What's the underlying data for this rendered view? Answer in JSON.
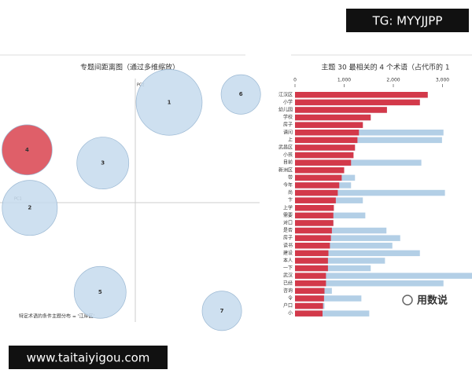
{
  "chart_data": [
    {
      "type": "bubble",
      "title": "专题间距离图（通过多维缩放）",
      "x_label": "PC1",
      "y_label": "PC2",
      "labels": [
        "1",
        "6",
        "4",
        "3",
        "2",
        "5",
        "7"
      ],
      "x": [
        0.25,
        0.78,
        -0.8,
        -0.24,
        -0.78,
        -0.26,
        0.64
      ],
      "y": [
        0.76,
        0.82,
        0.4,
        0.3,
        -0.04,
        -0.68,
        -0.82
      ],
      "sizes": [
        17.6,
        6.3,
        10.2,
        10.9,
        12.3,
        10.9,
        6.3
      ],
      "colors": [
        "#c6dbed",
        "#c6dbed",
        "#d9434f",
        "#c6dbed",
        "#c6dbed",
        "#c6dbed",
        "#c6dbed"
      ],
      "xlim": [
        -1,
        1
      ],
      "ylim": [
        -1,
        1
      ],
      "annotation": "特定术语的条件主题分布 = '江岸区'"
    },
    {
      "type": "hbar",
      "title": "主题 30 最相关的 4 个术语（占代币的 1",
      "categories": [
        "江汉区",
        "小学",
        "幼儿园",
        "学校",
        "房子",
        "请问",
        "上",
        "武昌区",
        "小孩",
        "目前",
        "新洲区",
        "带",
        "今年",
        "尚",
        "卞",
        "上学",
        "需要",
        "对口",
        "是否",
        "房子",
        "读书",
        "建设",
        "本人",
        "一下",
        "武汉",
        "已经",
        "咨询",
        "令",
        "户口",
        "小"
      ],
      "series": [
        {
          "color": "#b3cfe6",
          "values": [
            2700,
            2540,
            1870,
            1540,
            1380,
            3020,
            2990,
            1220,
            1190,
            2570,
            1000,
            1220,
            1140,
            3050,
            1380,
            790,
            1430,
            780,
            1860,
            2140,
            1980,
            2540,
            1830,
            1540,
            3600,
            3020,
            750,
            1350,
            600,
            1510
          ]
        },
        {
          "color": "#d3394a",
          "values": [
            2700,
            2540,
            1870,
            1540,
            1380,
            1300,
            1270,
            1220,
            1190,
            1140,
            1000,
            950,
            900,
            870,
            830,
            790,
            780,
            780,
            750,
            730,
            710,
            680,
            670,
            670,
            630,
            630,
            600,
            590,
            570,
            560
          ]
        }
      ],
      "xlim": [
        0,
        3600
      ],
      "xticks": [
        0,
        {
          "value": 1000,
          "label": "1,000"
        },
        {
          "value": 2000,
          "label": "2,000"
        },
        {
          "value": 3000,
          "label": "3,000"
        }
      ]
    }
  ],
  "watermarks": {
    "top": "TG: MYYJJPP",
    "bottom": "www.taitaiyigou.com",
    "logo": "用数说"
  }
}
